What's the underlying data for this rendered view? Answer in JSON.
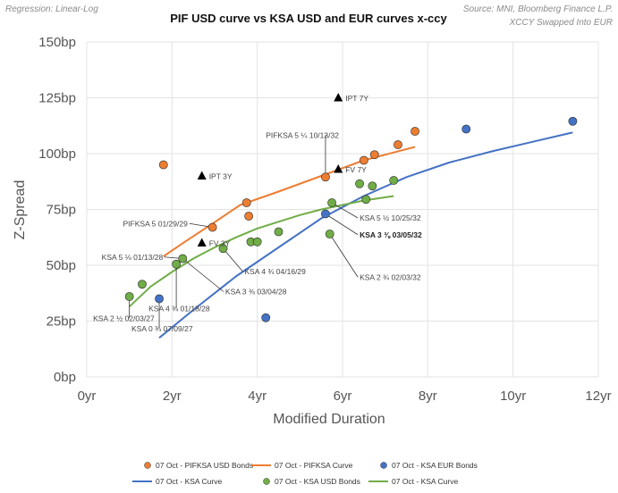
{
  "chart_data": {
    "type": "scatter",
    "title": "PIF USD curve vs KSA USD and EUR curves x-ccy",
    "notes": {
      "left": "Regression: Linear-Log",
      "right_line1": "Source: MNI, Bloomberg Finance L.P.",
      "right_line2": "XCCY Swapped Into EUR"
    },
    "xlabel": "Modified Duration",
    "ylabel": "Z-Spread",
    "xlim": [
      0,
      12
    ],
    "ylim": [
      0,
      150
    ],
    "xticks": [
      0,
      2,
      4,
      6,
      8,
      10,
      12
    ],
    "yticks": [
      0,
      25,
      50,
      75,
      100,
      125,
      150
    ],
    "xtick_labels": [
      "0yr",
      "2yr",
      "4yr",
      "6yr",
      "8yr",
      "10yr",
      "12yr"
    ],
    "ytick_labels": [
      "0bp",
      "25bp",
      "50bp",
      "75bp",
      "100bp",
      "125bp",
      "150bp"
    ],
    "colors": {
      "pif": "#ed7d31",
      "ksa_eur": "#4472c4",
      "ksa_usd": "#70ad47",
      "marker_edge": "#2f2f2f",
      "triangle": "#000000",
      "grid": "#e3e3e3"
    },
    "series": [
      {
        "name": "07 Oct - PIFKSA  USD Bonds",
        "kind": "points",
        "color_key": "pif",
        "points": [
          [
            1.8,
            95
          ],
          [
            2.95,
            67
          ],
          [
            3.75,
            78
          ],
          [
            3.8,
            72
          ],
          [
            5.6,
            89.5
          ],
          [
            6.5,
            97
          ],
          [
            6.75,
            99.5
          ],
          [
            7.3,
            104
          ],
          [
            7.7,
            110
          ]
        ]
      },
      {
        "name": "07 Oct - PIFKSA Curve",
        "kind": "line",
        "color_key": "pif",
        "points": [
          [
            1.8,
            54
          ],
          [
            2.3,
            60.5
          ],
          [
            2.9,
            68
          ],
          [
            3.6,
            77
          ],
          [
            4.5,
            83
          ],
          [
            5.5,
            90
          ],
          [
            6.5,
            97
          ],
          [
            7.2,
            100.5
          ],
          [
            7.7,
            103
          ]
        ]
      },
      {
        "name": "07 Oct - KSA  EUR Bonds",
        "kind": "points",
        "color_key": "ksa_eur",
        "points": [
          [
            1.7,
            35
          ],
          [
            4.2,
            26.5
          ],
          [
            5.6,
            73
          ],
          [
            8.9,
            111
          ],
          [
            11.4,
            114.5
          ]
        ]
      },
      {
        "name": "07 Oct - KSA Curve",
        "kind": "line",
        "color_key": "ksa_eur",
        "points": [
          [
            1.7,
            17.5
          ],
          [
            2.5,
            30
          ],
          [
            3.5,
            45
          ],
          [
            4.5,
            58
          ],
          [
            5.5,
            71
          ],
          [
            6.5,
            81
          ],
          [
            7.5,
            89.5
          ],
          [
            8.5,
            96
          ],
          [
            9.5,
            101
          ],
          [
            10.5,
            105.5
          ],
          [
            11.4,
            109.5
          ]
        ]
      },
      {
        "name": "07 Oct - KSA  USD Bonds",
        "kind": "points",
        "color_key": "ksa_usd",
        "points": [
          [
            1.0,
            36
          ],
          [
            1.3,
            41.5
          ],
          [
            2.1,
            50.5
          ],
          [
            2.25,
            53
          ],
          [
            3.2,
            57.5
          ],
          [
            3.85,
            60.5
          ],
          [
            4.0,
            60.5
          ],
          [
            4.5,
            65
          ],
          [
            5.7,
            64
          ],
          [
            5.75,
            78
          ],
          [
            6.4,
            86.5
          ],
          [
            6.55,
            79.5
          ],
          [
            6.7,
            85.5
          ],
          [
            7.2,
            88
          ]
        ]
      },
      {
        "name": "07 Oct - KSA Curve",
        "kind": "line",
        "color_key": "ksa_usd",
        "points": [
          [
            1.0,
            31.5
          ],
          [
            1.5,
            40.5
          ],
          [
            2.0,
            47
          ],
          [
            2.5,
            53
          ],
          [
            3.0,
            58
          ],
          [
            3.5,
            62.5
          ],
          [
            4.0,
            66.5
          ],
          [
            4.5,
            69.5
          ],
          [
            5.0,
            72.5
          ],
          [
            5.5,
            75
          ],
          [
            6.0,
            77
          ],
          [
            6.5,
            79
          ],
          [
            7.2,
            81
          ]
        ]
      },
      {
        "name": "Markers (IPT / FV)",
        "kind": "triangles",
        "color_key": "triangle",
        "points": [
          [
            2.7,
            90,
            "IPT 3Y"
          ],
          [
            2.7,
            60,
            "FV 3Y"
          ],
          [
            5.9,
            125,
            "IPT 7Y"
          ],
          [
            5.9,
            93,
            "FV 7Y"
          ]
        ]
      }
    ],
    "annotations": [
      {
        "text": "PIFKSA 5 ¼ 10/13/32",
        "at": [
          5.6,
          89.5
        ],
        "label_at": [
          4.2,
          107
        ],
        "anchor": "start",
        "bold": false
      },
      {
        "text": "PIFKSA 5 01/29/29",
        "at": [
          2.95,
          67
        ],
        "label_at": [
          0.85,
          67.5
        ],
        "anchor": "start",
        "bold": false
      },
      {
        "text": "KSA 5 ½ 10/25/32",
        "at": [
          5.75,
          78
        ],
        "label_at": [
          6.4,
          70
        ],
        "anchor": "start",
        "bold": false
      },
      {
        "text": "KSA 3 ⅜ 03/05/32",
        "at": [
          5.6,
          73
        ],
        "label_at": [
          6.4,
          62.5
        ],
        "anchor": "start",
        "bold": true
      },
      {
        "text": "KSA 5 ⅛ 01/13/28",
        "at": [
          2.25,
          53
        ],
        "label_at": [
          0.35,
          52.5
        ],
        "anchor": "start",
        "bold": false
      },
      {
        "text": "KSA 4 ¾ 04/16/29",
        "at": [
          3.2,
          57.5
        ],
        "label_at": [
          3.7,
          46
        ],
        "anchor": "start",
        "bold": false
      },
      {
        "text": "KSA 3 ⅜ 03/04/28",
        "at": [
          2.25,
          53
        ],
        "label_at": [
          3.25,
          37
        ],
        "anchor": "start",
        "bold": false
      },
      {
        "text": "KSA 4 ¾ 01/18/28",
        "at": [
          2.1,
          50.5
        ],
        "label_at": [
          1.45,
          29.5
        ],
        "anchor": "start",
        "bold": false
      },
      {
        "text": "KSA 2 ½ 02/03/27",
        "at": [
          1.0,
          36
        ],
        "label_at": [
          0.15,
          25
        ],
        "anchor": "start",
        "bold": false
      },
      {
        "text": "KSA 0 ¾ 07/09/27",
        "at": [
          1.7,
          35
        ],
        "label_at": [
          1.05,
          20.5
        ],
        "anchor": "start",
        "bold": false
      },
      {
        "text": "KSA 2 ¾ 02/03/32",
        "at": [
          5.7,
          64
        ],
        "label_at": [
          6.4,
          43.5
        ],
        "anchor": "start",
        "bold": false
      }
    ],
    "legend": [
      {
        "label": "07 Oct - PIFKSA  USD Bonds",
        "type": "marker",
        "color_key": "pif"
      },
      {
        "label": "07 Oct - PIFKSA Curve",
        "type": "line",
        "color_key": "pif"
      },
      {
        "label": "07 Oct - KSA  EUR Bonds",
        "type": "marker",
        "color_key": "ksa_eur"
      },
      {
        "label": "07 Oct - KSA Curve",
        "type": "line",
        "color_key": "ksa_eur"
      },
      {
        "label": "07 Oct - KSA  USD Bonds",
        "type": "marker",
        "color_key": "ksa_usd"
      },
      {
        "label": "07 Oct - KSA Curve",
        "type": "line",
        "color_key": "ksa_usd"
      }
    ],
    "legend_position": "bottom"
  }
}
